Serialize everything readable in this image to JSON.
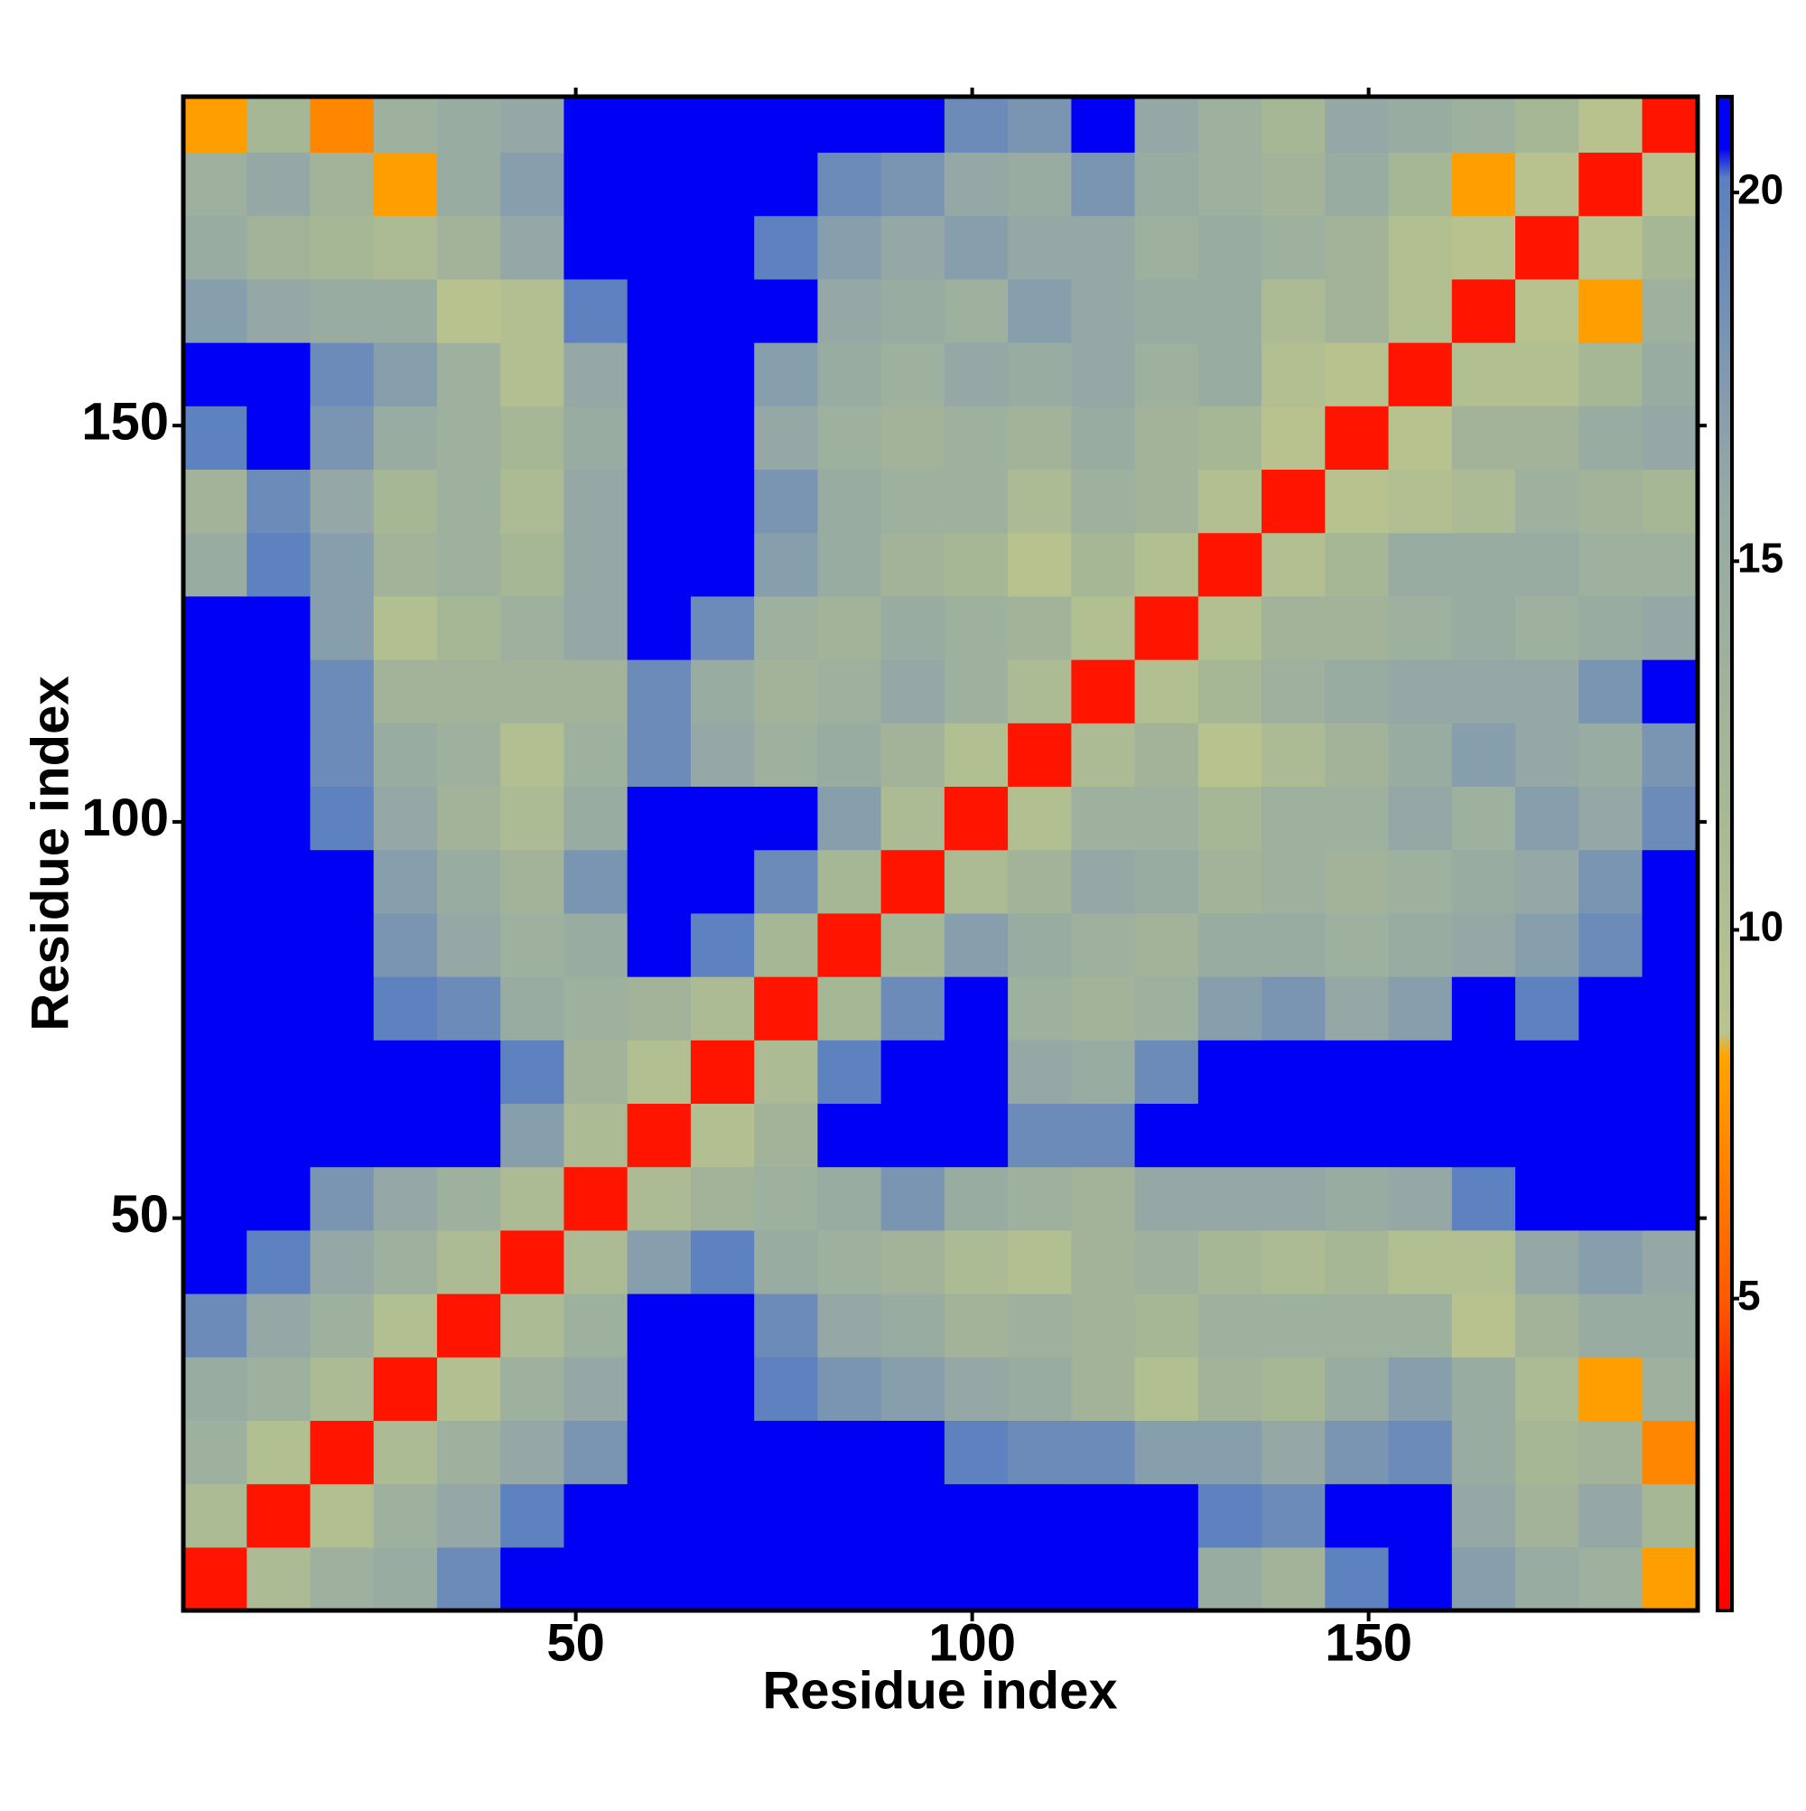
{
  "chart_data": {
    "type": "heatmap",
    "x_label": "Residue index",
    "y_label": "Residue index",
    "x": [
      4.5,
      12.5,
      20.5,
      28.5,
      36.5,
      44.5,
      52.5,
      60.5,
      68.5,
      76.5,
      84.5,
      92.5,
      100.5,
      108.5,
      116.5,
      124.5,
      132.5,
      140.5,
      148.5,
      156.5,
      164.5,
      172.5,
      180.5,
      188.5
    ],
    "y": [
      4.5,
      12.5,
      20.5,
      28.5,
      36.5,
      44.5,
      52.5,
      60.5,
      68.5,
      76.5,
      84.5,
      92.5,
      100.5,
      108.5,
      116.5,
      124.5,
      132.5,
      140.5,
      148.5,
      156.5,
      164.5,
      172.5,
      180.5,
      188.5
    ],
    "z": [
      [
        3,
        11,
        14,
        15,
        19,
        21,
        21,
        21,
        21,
        21,
        21,
        21,
        21,
        21,
        21,
        21,
        15,
        13,
        20,
        21,
        17,
        15,
        14,
        8
      ],
      [
        11,
        3,
        10,
        14,
        16,
        20,
        21,
        21,
        21,
        21,
        21,
        21,
        21,
        21,
        21,
        21,
        20,
        19,
        21,
        21,
        16,
        13,
        16,
        12
      ],
      [
        14,
        10,
        3,
        11,
        14,
        16,
        18,
        21,
        21,
        21,
        21,
        21,
        20,
        19,
        19,
        17,
        17,
        16,
        18,
        19,
        15,
        12,
        13,
        7
      ],
      [
        15,
        14,
        11,
        3,
        10,
        14,
        16,
        21,
        21,
        20,
        18,
        17,
        16,
        15,
        13,
        10,
        13,
        12,
        15,
        17,
        15,
        11,
        8,
        14
      ],
      [
        19,
        16,
        14,
        10,
        3,
        11,
        14,
        21,
        21,
        19,
        16,
        15,
        13,
        14,
        13,
        12,
        14,
        14,
        14,
        14,
        9,
        13,
        15,
        15
      ],
      [
        21,
        20,
        16,
        14,
        11,
        3,
        11,
        17,
        20,
        15,
        14,
        13,
        11,
        10,
        13,
        14,
        12,
        11,
        12,
        10,
        10,
        16,
        17,
        16
      ],
      [
        21,
        21,
        18,
        16,
        14,
        11,
        3,
        11,
        13,
        14,
        15,
        18,
        15,
        14,
        13,
        16,
        16,
        16,
        15,
        16,
        20,
        21,
        21,
        21
      ],
      [
        21,
        21,
        21,
        21,
        21,
        17,
        11,
        3,
        10,
        13,
        21,
        21,
        21,
        19,
        19,
        21,
        21,
        21,
        21,
        21,
        21,
        21,
        21,
        21
      ],
      [
        21,
        21,
        21,
        21,
        21,
        20,
        13,
        10,
        3,
        11,
        20,
        21,
        21,
        16,
        15,
        19,
        21,
        21,
        21,
        21,
        21,
        21,
        21,
        21
      ],
      [
        21,
        21,
        21,
        20,
        19,
        15,
        14,
        13,
        11,
        3,
        12,
        19,
        21,
        14,
        13,
        14,
        17,
        18,
        16,
        17,
        21,
        20,
        21,
        21
      ],
      [
        21,
        21,
        21,
        18,
        16,
        14,
        15,
        21,
        20,
        12,
        3,
        12,
        17,
        15,
        14,
        13,
        15,
        15,
        14,
        15,
        16,
        17,
        19,
        21
      ],
      [
        21,
        21,
        21,
        17,
        15,
        13,
        18,
        21,
        21,
        19,
        12,
        3,
        11,
        13,
        16,
        15,
        13,
        14,
        13,
        14,
        15,
        16,
        18,
        21
      ],
      [
        21,
        21,
        20,
        16,
        13,
        11,
        15,
        21,
        21,
        21,
        17,
        11,
        3,
        10,
        14,
        14,
        12,
        14,
        14,
        16,
        14,
        17,
        16,
        19
      ],
      [
        21,
        21,
        19,
        15,
        14,
        10,
        14,
        19,
        16,
        14,
        15,
        13,
        10,
        3,
        11,
        13,
        9,
        11,
        13,
        15,
        17,
        16,
        15,
        18
      ],
      [
        21,
        21,
        19,
        13,
        13,
        13,
        13,
        19,
        15,
        13,
        14,
        16,
        14,
        11,
        3,
        10,
        12,
        14,
        15,
        16,
        16,
        16,
        18,
        21
      ],
      [
        21,
        21,
        17,
        10,
        12,
        14,
        16,
        21,
        19,
        14,
        13,
        15,
        14,
        13,
        10,
        3,
        10,
        13,
        13,
        14,
        15,
        14,
        15,
        16
      ],
      [
        15,
        20,
        17,
        13,
        14,
        12,
        16,
        21,
        21,
        17,
        15,
        13,
        12,
        9,
        12,
        10,
        3,
        10,
        12,
        15,
        15,
        15,
        14,
        14
      ],
      [
        13,
        19,
        16,
        12,
        14,
        11,
        16,
        21,
        21,
        18,
        15,
        14,
        14,
        11,
        14,
        13,
        10,
        3,
        9,
        10,
        11,
        14,
        13,
        12
      ],
      [
        20,
        21,
        18,
        15,
        14,
        12,
        15,
        21,
        21,
        16,
        14,
        13,
        14,
        13,
        15,
        13,
        12,
        9,
        3,
        9,
        13,
        13,
        15,
        16
      ],
      [
        21,
        21,
        19,
        17,
        14,
        10,
        16,
        21,
        21,
        17,
        15,
        14,
        16,
        15,
        16,
        14,
        15,
        10,
        9,
        3,
        10,
        10,
        12,
        15
      ],
      [
        17,
        16,
        15,
        15,
        9,
        10,
        20,
        21,
        21,
        21,
        16,
        15,
        14,
        17,
        16,
        15,
        15,
        11,
        13,
        10,
        3,
        9,
        8,
        14
      ],
      [
        15,
        13,
        12,
        11,
        13,
        16,
        21,
        21,
        21,
        20,
        17,
        16,
        17,
        16,
        16,
        14,
        15,
        14,
        13,
        10,
        9,
        3,
        9,
        12
      ],
      [
        14,
        16,
        13,
        8,
        15,
        17,
        21,
        21,
        21,
        21,
        19,
        18,
        16,
        15,
        18,
        15,
        14,
        13,
        15,
        12,
        8,
        9,
        3,
        9
      ],
      [
        8,
        12,
        7,
        14,
        15,
        16,
        21,
        21,
        21,
        21,
        21,
        21,
        19,
        18,
        21,
        16,
        14,
        12,
        16,
        15,
        14,
        12,
        9,
        3
      ]
    ],
    "xlim": [
      0.5,
      191.5
    ],
    "ylim": [
      0.5,
      191.5
    ],
    "xticks": [
      50,
      100,
      150
    ],
    "yticks": [
      50,
      100,
      150
    ],
    "colorbar": {
      "lim": [
        0.77,
        21.3
      ],
      "ticks": [
        5,
        10,
        15,
        20
      ]
    },
    "colorscale": [
      [
        0.77,
        "#ff0000"
      ],
      [
        3.6,
        "#ff1a00"
      ],
      [
        5,
        "#ff5a00"
      ],
      [
        8.3,
        "#ffa500"
      ],
      [
        8.6,
        "#b9c48e"
      ],
      [
        12,
        "#a6b796"
      ],
      [
        16,
        "#95a8a6"
      ],
      [
        20.2,
        "#5b80c0"
      ],
      [
        20.6,
        "#0000f5"
      ],
      [
        21.3,
        "#0000f5"
      ]
    ]
  }
}
